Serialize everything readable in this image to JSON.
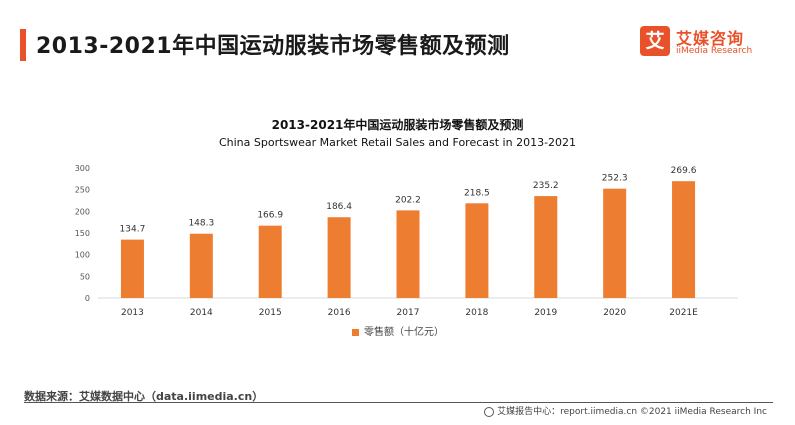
{
  "header": {
    "title": "2013-2021年中国运动服装市场零售额及预测",
    "logo_mark": "艾",
    "logo_cn": "艾媒咨询",
    "logo_en": "iiMedia Research"
  },
  "footer": {
    "source": "数据来源：艾媒数据中心（data.iimedia.cn）",
    "right": "艾媒报告中心：report.iimedia.cn ©2021 iiMedia Research Inc"
  },
  "colors": {
    "accent": "#e8512a",
    "bar": "#ed7d31"
  },
  "chart_data": {
    "type": "bar",
    "title": "2013-2021年中国运动服装市场零售额及预测",
    "subtitle": "China Sportswear Market Retail Sales and Forecast  in 2013-2021",
    "categories": [
      "2013",
      "2014",
      "2015",
      "2016",
      "2017",
      "2018",
      "2019",
      "2020",
      "2021E"
    ],
    "series": [
      {
        "name": "零售额（十亿元）",
        "values": [
          134.7,
          148.3,
          166.9,
          186.4,
          202.2,
          218.5,
          235.2,
          252.3,
          269.6
        ]
      }
    ],
    "ylim": [
      0,
      300
    ],
    "yticks": [
      0,
      50,
      100,
      150,
      200,
      250,
      300
    ],
    "xlabel": "",
    "ylabel": "",
    "grid": false,
    "legend_position": "bottom"
  }
}
